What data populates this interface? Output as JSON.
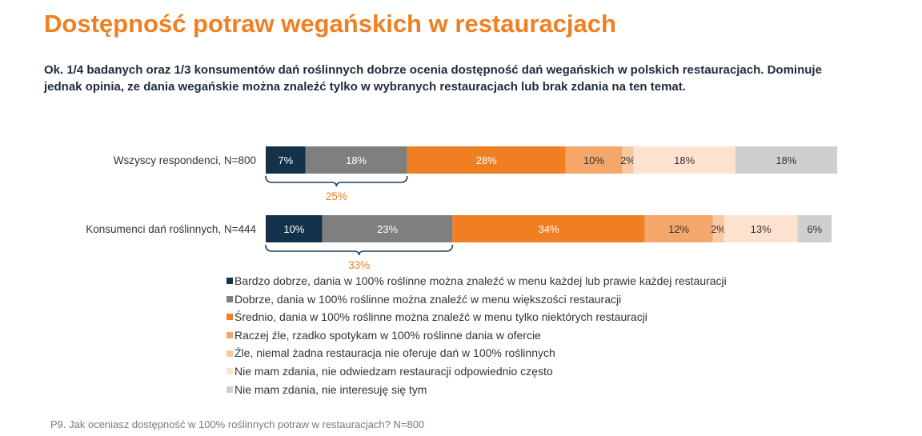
{
  "title": "Dostępność potraw wegańskich w restauracjach",
  "subtitle": "Ok. 1/4 badanych oraz 1/3 konsumentów dań roślinnych dobrze ocenia dostępność dań wegańskich w polskich restauracjach. Dominuje jednak opinia, ze dania wegańskie można znaleźć tylko w wybranych restauracjach lub brak zdania na ten temat.",
  "footnote": "P9. Jak oceniasz dostępność w 100% roślinnych potraw w restauracjach? N=800",
  "chart_data": {
    "type": "bar",
    "orientation": "horizontal",
    "stacked": true,
    "categories": [
      "Wszyscy respondenci, N=800",
      "Konsumenci dań roślinnych, N=444"
    ],
    "series": [
      {
        "name": "Bardzo dobrze, dania w 100% roślinne można znaleźć w menu każdej lub prawie każdej restauracji",
        "values": [
          7,
          10
        ],
        "color": "#13324a",
        "label_color": "#ffffff"
      },
      {
        "name": "Dobrze, dania w 100% roślinne można znaleźć w menu większości restauracji",
        "values": [
          18,
          23
        ],
        "color": "#7f7f7f",
        "label_color": "#ffffff"
      },
      {
        "name": "Średnio, dania w 100% roślinne można znaleźć w menu tylko niektórych restauracji",
        "values": [
          28,
          34
        ],
        "color": "#f07f21",
        "label_color": "#ffffff"
      },
      {
        "name": "Raczej źle, rzadko spotykam w 100% roślinne dania w ofercie",
        "values": [
          10,
          12
        ],
        "color": "#f5a66b",
        "label_color": "#333333"
      },
      {
        "name": "Źle, niemal żadna restauracja nie oferuje dań w 100% roślinnych",
        "values": [
          2,
          2
        ],
        "color": "#f9c9a4",
        "label_color": "#333333"
      },
      {
        "name": "Nie mam zdania, nie odwiedzam restauracji odpowiednio często",
        "values": [
          18,
          13
        ],
        "color": "#fde3cf",
        "label_color": "#333333"
      },
      {
        "name": "Nie mam zdania, nie interesuję się tym",
        "values": [
          18,
          6
        ],
        "color": "#cfcfcf",
        "label_color": "#333333"
      }
    ],
    "bracket_totals": [
      "25%",
      "33%"
    ],
    "bracket_color": "#f07f21",
    "xlim": [
      0,
      100
    ],
    "value_suffix": "%",
    "legend_position": "bottom",
    "grid": false
  }
}
